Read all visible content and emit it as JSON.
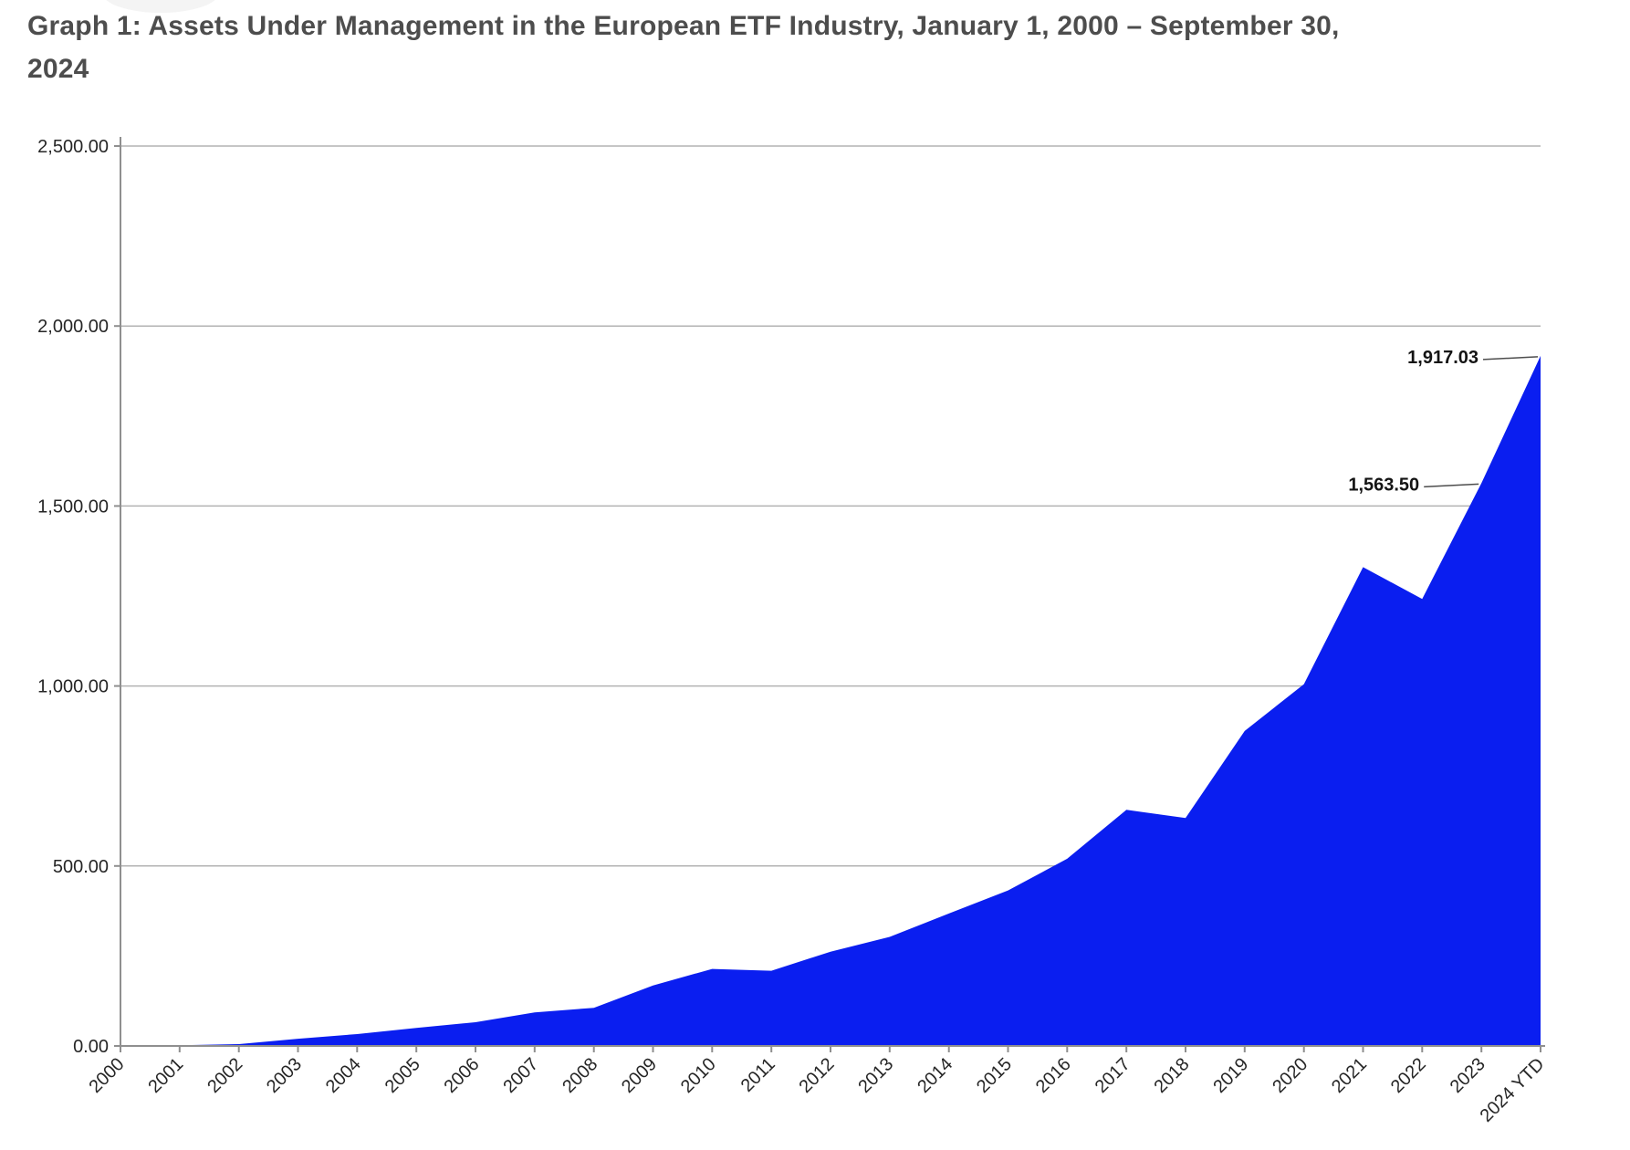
{
  "title": "Graph 1: Assets Under Management in the European ETF Industry, January 1, 2000 – September 30, 2024",
  "chart_data": {
    "type": "area",
    "title": "Graph 1: Assets Under Management in the European ETF Industry, January 1, 2000 – September 30, 2024",
    "categories": [
      "2000",
      "2001",
      "2002",
      "2003",
      "2004",
      "2005",
      "2006",
      "2007",
      "2008",
      "2009",
      "2010",
      "2011",
      "2012",
      "2013",
      "2014",
      "2015",
      "2016",
      "2017",
      "2018",
      "2019",
      "2020",
      "2021",
      "2022",
      "2023",
      "2024 YTD"
    ],
    "values": [
      1,
      2,
      5,
      20,
      33,
      50,
      66,
      93,
      106,
      168,
      214,
      209,
      262,
      303,
      368,
      432,
      520,
      656,
      633,
      875,
      1005,
      1330,
      1242,
      1563.5,
      1917.03
    ],
    "ylim": [
      0,
      2500
    ],
    "y_ticks": [
      {
        "label": "0.00",
        "value": 0
      },
      {
        "label": "500.00",
        "value": 500
      },
      {
        "label": "1,000.00",
        "value": 1000
      },
      {
        "label": "1,500.00",
        "value": 1500
      },
      {
        "label": "2,000.00",
        "value": 2000
      },
      {
        "label": "2,500.00",
        "value": 2500
      }
    ],
    "grid": "horizontal",
    "legend": "none",
    "colors": {
      "area": "#0a1ef0",
      "gridline": "#b3b3b3",
      "axis": "#8f8f8f",
      "axis_text": "#262626",
      "annotation_text": "#141414",
      "leader_line": "#4d4d4d",
      "title_text": "#4d4d4d"
    },
    "annotations": [
      {
        "label": "1,917.03",
        "category": "2024 YTD",
        "value": 1917.03
      },
      {
        "label": "1,563.50",
        "category": "2023",
        "value": 1563.5
      }
    ]
  }
}
